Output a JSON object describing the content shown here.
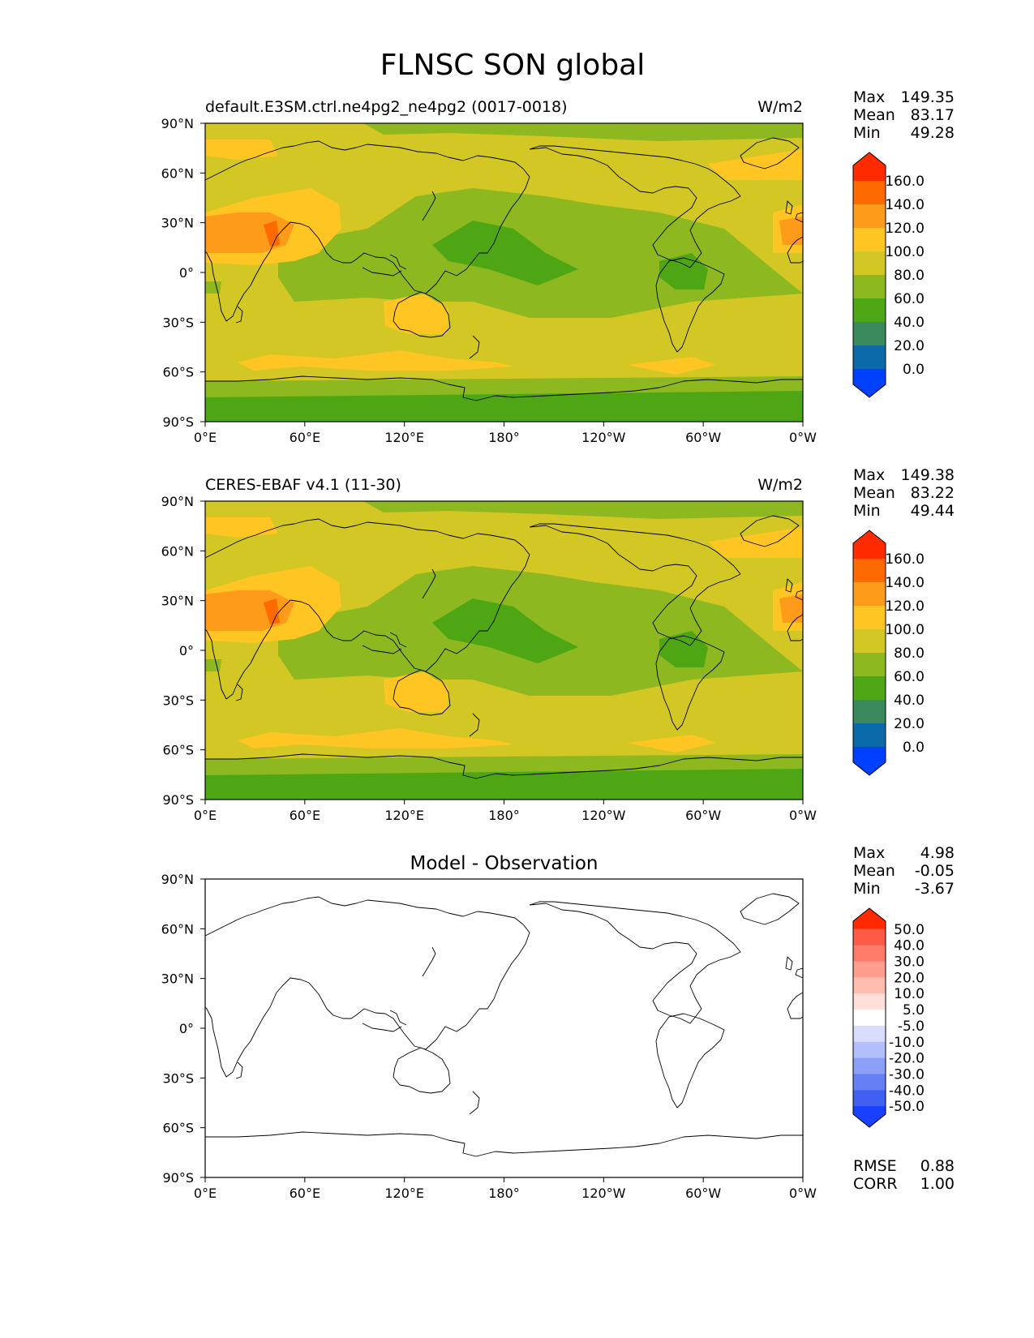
{
  "figure_title": "FLNSC SON global",
  "x_ticks": [
    "0°E",
    "60°E",
    "120°E",
    "180°",
    "120°W",
    "60°W",
    "0°W"
  ],
  "y_ticks": [
    "90°N",
    "60°N",
    "30°N",
    "0°",
    "30°S",
    "60°S",
    "90°S"
  ],
  "panels": [
    {
      "id": "model",
      "title_left": "default.E3SM.ctrl.ne4pg2_ne4pg2 (0017-0018)",
      "title_center": "",
      "units": "W/m2",
      "stats": [
        {
          "label": "Max",
          "value": "149.35"
        },
        {
          "label": "Mean",
          "value": "83.17"
        },
        {
          "label": "Min",
          "value": "49.28"
        }
      ],
      "colorbar_labels": [
        "160.0",
        "140.0",
        "120.0",
        "100.0",
        "80.0",
        "60.0",
        "40.0",
        "20.0",
        "0.0"
      ],
      "colorbar_colors": [
        "#ff2a00",
        "#ff6a00",
        "#ff9b1a",
        "#ffc523",
        "#d2c724",
        "#8db81f",
        "#4ea614",
        "#3b8a5e",
        "#0b6aa8",
        "#0040ff"
      ],
      "footer": []
    },
    {
      "id": "obs",
      "title_left": "CERES-EBAF v4.1 (11-30)",
      "title_center": "",
      "units": "W/m2",
      "stats": [
        {
          "label": "Max",
          "value": "149.38"
        },
        {
          "label": "Mean",
          "value": "83.22"
        },
        {
          "label": "Min",
          "value": "49.44"
        }
      ],
      "colorbar_labels": [
        "160.0",
        "140.0",
        "120.0",
        "100.0",
        "80.0",
        "60.0",
        "40.0",
        "20.0",
        "0.0"
      ],
      "colorbar_colors": [
        "#ff2a00",
        "#ff6a00",
        "#ff9b1a",
        "#ffc523",
        "#d2c724",
        "#8db81f",
        "#4ea614",
        "#3b8a5e",
        "#0b6aa8",
        "#0040ff"
      ],
      "footer": []
    },
    {
      "id": "diff",
      "title_left": "",
      "title_center": "Model - Observation",
      "units": "",
      "stats": [
        {
          "label": "Max",
          "value": "4.98"
        },
        {
          "label": "Mean",
          "value": "-0.05"
        },
        {
          "label": "Min",
          "value": "-3.67"
        }
      ],
      "colorbar_labels": [
        "50.0",
        "40.0",
        "30.0",
        "20.0",
        "10.0",
        "5.0",
        "-5.0",
        "-10.0",
        "-20.0",
        "-30.0",
        "-40.0",
        "-50.0"
      ],
      "colorbar_colors": [
        "#ff2a00",
        "#ff5a45",
        "#ff7c6a",
        "#ff9d8f",
        "#ffbdb2",
        "#ffdfd8",
        "#ffffff",
        "#d9defe",
        "#b3bffb",
        "#8ca0f7",
        "#6680f3",
        "#3f60f0",
        "#1a40ff"
      ],
      "footer": [
        {
          "label": "RMSE",
          "value": "0.88"
        },
        {
          "label": "CORR",
          "value": "1.00"
        }
      ]
    }
  ],
  "chart_data": [
    {
      "type": "heatmap",
      "title": "default.E3SM.ctrl.ne4pg2_ne4pg2 (0017-0018)",
      "units": "W/m2",
      "x": [
        "0°E",
        "60°E",
        "120°E",
        "180°",
        "120°W",
        "60°W",
        "0°W"
      ],
      "y": [
        "90°N",
        "60°N",
        "30°N",
        "0°",
        "30°S",
        "60°S",
        "90°S"
      ],
      "levels": [
        0,
        20,
        40,
        60,
        80,
        100,
        120,
        140,
        160
      ],
      "max": 149.35,
      "mean": 83.17,
      "min": 49.28
    },
    {
      "type": "heatmap",
      "title": "CERES-EBAF v4.1 (11-30)",
      "units": "W/m2",
      "x": [
        "0°E",
        "60°E",
        "120°E",
        "180°",
        "120°W",
        "60°W",
        "0°W"
      ],
      "y": [
        "90°N",
        "60°N",
        "30°N",
        "0°",
        "30°S",
        "60°S",
        "90°S"
      ],
      "levels": [
        0,
        20,
        40,
        60,
        80,
        100,
        120,
        140,
        160
      ],
      "max": 149.38,
      "mean": 83.22,
      "min": 49.44
    },
    {
      "type": "heatmap",
      "title": "Model - Observation",
      "x": [
        "0°E",
        "60°E",
        "120°E",
        "180°",
        "120°W",
        "60°W",
        "0°W"
      ],
      "y": [
        "90°N",
        "60°N",
        "30°N",
        "0°",
        "30°S",
        "60°S",
        "90°S"
      ],
      "levels": [
        -50,
        -40,
        -30,
        -20,
        -10,
        -5,
        5,
        10,
        20,
        30,
        40,
        50
      ],
      "max": 4.98,
      "mean": -0.05,
      "min": -3.67,
      "rmse": 0.88,
      "corr": 1.0
    }
  ]
}
